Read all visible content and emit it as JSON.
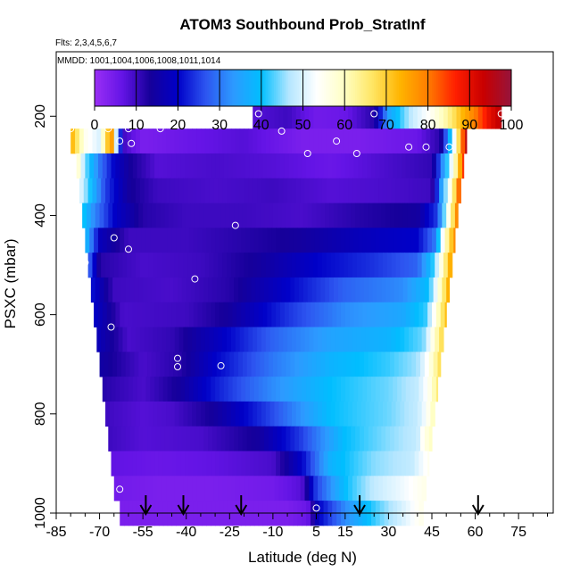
{
  "chart_data": {
    "type": "heatmap",
    "title": "ATOM3 Southbound Prob_StratInf",
    "subtitle_flights": "Flts: 2,3,4,5,6,7",
    "subtitle_dates": "MMDD: 1001,1004,1006,1008,1011,1014",
    "xlabel": "Latitude (deg N)",
    "ylabel": "PSXC (mbar)",
    "xlim": [
      -85,
      87
    ],
    "ylim": [
      1000,
      70
    ],
    "x_ticks": [
      "-85",
      "-70",
      "-55",
      "-40",
      "-25",
      "-10",
      "5",
      "15",
      "30",
      "45",
      "60",
      "75"
    ],
    "x_tick_values": [
      -85,
      -70,
      -55,
      -40,
      -25,
      -10,
      5,
      15,
      30,
      45,
      60,
      75
    ],
    "y_ticks": [
      "200",
      "400",
      "600",
      "800",
      "1000"
    ],
    "y_tick_values": [
      200,
      400,
      600,
      800,
      1000
    ],
    "colorbar": {
      "min": 0,
      "max": 100,
      "tick_labels": [
        "0",
        "10",
        "20",
        "30",
        "40",
        "50",
        "60",
        "70",
        "80",
        "90",
        "100"
      ],
      "tick_values": [
        0,
        10,
        20,
        30,
        40,
        50,
        60,
        70,
        80,
        90,
        100
      ],
      "colors": [
        "#9a2ff5",
        "#6414e6",
        "#16009a",
        "#0000c8",
        "#2d55f0",
        "#2d9aff",
        "#00beff",
        "#b4e6ff",
        "#ffffff",
        "#ffffc3",
        "#ffe664",
        "#ffb400",
        "#ff7d00",
        "#ff1e00",
        "#c80000",
        "#96143c"
      ]
    },
    "flight_arrows_lat": [
      -54,
      -41,
      -21,
      20,
      61
    ],
    "levels": [
      {
        "p": 200,
        "lat_min": -17,
        "lat_max": 69,
        "knots": [
          [
            -17,
            8
          ],
          [
            -5,
            10
          ],
          [
            5,
            5
          ],
          [
            15,
            6
          ],
          [
            25,
            12
          ],
          [
            30,
            35
          ],
          [
            38,
            48
          ],
          [
            45,
            55
          ],
          [
            50,
            62
          ],
          [
            55,
            72
          ],
          [
            60,
            80
          ],
          [
            65,
            90
          ],
          [
            69,
            95
          ]
        ]
      },
      {
        "p": 250,
        "lat_min": -80,
        "lat_max": 57,
        "knots": [
          [
            -80,
            75
          ],
          [
            -75,
            55
          ],
          [
            -70,
            50
          ],
          [
            -66,
            80
          ],
          [
            -62,
            10
          ],
          [
            -55,
            4
          ],
          [
            -40,
            6
          ],
          [
            -20,
            8
          ],
          [
            0,
            4
          ],
          [
            20,
            4
          ],
          [
            40,
            6
          ],
          [
            48,
            12
          ],
          [
            52,
            45
          ],
          [
            57,
            95
          ]
        ]
      },
      {
        "p": 300,
        "lat_min": -78,
        "lat_max": 56,
        "knots": [
          [
            -78,
            62
          ],
          [
            -75,
            45
          ],
          [
            -70,
            30
          ],
          [
            -65,
            20
          ],
          [
            -60,
            14
          ],
          [
            -50,
            8
          ],
          [
            -30,
            9
          ],
          [
            -10,
            8
          ],
          [
            10,
            6
          ],
          [
            30,
            9
          ],
          [
            45,
            11
          ],
          [
            50,
            40
          ],
          [
            53,
            60
          ],
          [
            56,
            85
          ]
        ]
      },
      {
        "p": 350,
        "lat_min": -77,
        "lat_max": 55,
        "knots": [
          [
            -77,
            52
          ],
          [
            -73,
            40
          ],
          [
            -68,
            25
          ],
          [
            -60,
            14
          ],
          [
            -50,
            10
          ],
          [
            -30,
            9
          ],
          [
            -10,
            10
          ],
          [
            10,
            8
          ],
          [
            30,
            9
          ],
          [
            45,
            10
          ],
          [
            49,
            40
          ],
          [
            52,
            60
          ],
          [
            55,
            88
          ]
        ]
      },
      {
        "p": 400,
        "lat_min": -76,
        "lat_max": 54,
        "knots": [
          [
            -76,
            42
          ],
          [
            -72,
            32
          ],
          [
            -65,
            20
          ],
          [
            -55,
            12
          ],
          [
            -40,
            10
          ],
          [
            -20,
            10
          ],
          [
            0,
            9
          ],
          [
            20,
            12
          ],
          [
            40,
            14
          ],
          [
            47,
            25
          ],
          [
            50,
            50
          ],
          [
            54,
            80
          ]
        ]
      },
      {
        "p": 450,
        "lat_min": -75,
        "lat_max": 53,
        "knots": [
          [
            -75,
            40
          ],
          [
            -70,
            18
          ],
          [
            -60,
            10
          ],
          [
            -40,
            10
          ],
          [
            -20,
            12
          ],
          [
            0,
            14
          ],
          [
            20,
            18
          ],
          [
            40,
            20
          ],
          [
            46,
            30
          ],
          [
            49,
            55
          ],
          [
            53,
            78
          ]
        ]
      },
      {
        "p": 500,
        "lat_min": -74,
        "lat_max": 52,
        "knots": [
          [
            -74,
            30
          ],
          [
            -70,
            12
          ],
          [
            -55,
            9
          ],
          [
            -35,
            10
          ],
          [
            -15,
            14
          ],
          [
            5,
            20
          ],
          [
            25,
            24
          ],
          [
            40,
            28
          ],
          [
            45,
            40
          ],
          [
            48,
            55
          ],
          [
            52,
            78
          ]
        ]
      },
      {
        "p": 550,
        "lat_min": -73,
        "lat_max": 51,
        "knots": [
          [
            -73,
            22
          ],
          [
            -65,
            10
          ],
          [
            -45,
            9
          ],
          [
            -25,
            12
          ],
          [
            -5,
            20
          ],
          [
            15,
            28
          ],
          [
            35,
            32
          ],
          [
            44,
            40
          ],
          [
            47,
            55
          ],
          [
            51,
            75
          ]
        ]
      },
      {
        "p": 600,
        "lat_min": -72,
        "lat_max": 50,
        "knots": [
          [
            -72,
            20
          ],
          [
            -62,
            9
          ],
          [
            -40,
            10
          ],
          [
            -25,
            14
          ],
          [
            -5,
            24
          ],
          [
            15,
            32
          ],
          [
            35,
            36
          ],
          [
            43,
            42
          ],
          [
            46,
            55
          ],
          [
            50,
            72
          ]
        ]
      },
      {
        "p": 650,
        "lat_min": -71,
        "lat_max": 49,
        "knots": [
          [
            -71,
            18
          ],
          [
            -60,
            9
          ],
          [
            -45,
            11
          ],
          [
            -30,
            18
          ],
          [
            -10,
            28
          ],
          [
            10,
            35
          ],
          [
            30,
            38
          ],
          [
            42,
            44
          ],
          [
            45,
            55
          ],
          [
            49,
            70
          ]
        ]
      },
      {
        "p": 700,
        "lat_min": -70,
        "lat_max": 48,
        "knots": [
          [
            -70,
            15
          ],
          [
            -55,
            9
          ],
          [
            -42,
            12
          ],
          [
            -30,
            20
          ],
          [
            -10,
            30
          ],
          [
            10,
            38
          ],
          [
            30,
            42
          ],
          [
            40,
            46
          ],
          [
            44,
            55
          ],
          [
            48,
            68
          ]
        ]
      },
      {
        "p": 750,
        "lat_min": -69,
        "lat_max": 47,
        "knots": [
          [
            -69,
            12
          ],
          [
            -55,
            9
          ],
          [
            -42,
            14
          ],
          [
            -30,
            22
          ],
          [
            -10,
            32
          ],
          [
            10,
            40
          ],
          [
            30,
            44
          ],
          [
            40,
            48
          ],
          [
            44,
            55
          ],
          [
            47,
            65
          ]
        ]
      },
      {
        "p": 800,
        "lat_min": -68,
        "lat_max": 46,
        "knots": [
          [
            -68,
            10
          ],
          [
            -55,
            8
          ],
          [
            -45,
            9
          ],
          [
            -30,
            14
          ],
          [
            -10,
            26
          ],
          [
            10,
            40
          ],
          [
            30,
            44
          ],
          [
            40,
            48
          ],
          [
            43,
            53
          ],
          [
            46,
            62
          ]
        ]
      },
      {
        "p": 850,
        "lat_min": -67,
        "lat_max": 45,
        "knots": [
          [
            -67,
            10
          ],
          [
            -55,
            8
          ],
          [
            -35,
            9
          ],
          [
            -15,
            14
          ],
          [
            0,
            25
          ],
          [
            15,
            40
          ],
          [
            30,
            45
          ],
          [
            40,
            48
          ],
          [
            42,
            55
          ],
          [
            45,
            60
          ]
        ]
      },
      {
        "p": 900,
        "lat_min": -66,
        "lat_max": 44,
        "knots": [
          [
            -66,
            7
          ],
          [
            -50,
            6
          ],
          [
            -30,
            7
          ],
          [
            -10,
            9
          ],
          [
            0,
            20
          ],
          [
            10,
            38
          ],
          [
            25,
            45
          ],
          [
            38,
            48
          ],
          [
            44,
            55
          ]
        ]
      },
      {
        "p": 950,
        "lat_min": -65,
        "lat_max": 43,
        "knots": [
          [
            -65,
            5
          ],
          [
            -50,
            4
          ],
          [
            -30,
            4
          ],
          [
            -10,
            5
          ],
          [
            0,
            8
          ],
          [
            5,
            25
          ],
          [
            15,
            40
          ],
          [
            25,
            48
          ],
          [
            35,
            52
          ],
          [
            43,
            56
          ]
        ]
      },
      {
        "p": 1000,
        "lat_min": -63,
        "lat_max": 42,
        "knots": [
          [
            -63,
            4
          ],
          [
            -40,
            4
          ],
          [
            -20,
            4
          ],
          [
            -5,
            4
          ],
          [
            2,
            6
          ],
          [
            6,
            20
          ],
          [
            15,
            32
          ],
          [
            25,
            42
          ],
          [
            35,
            50
          ],
          [
            42,
            56
          ]
        ]
      }
    ],
    "sample_points": [
      {
        "lat": -15,
        "p": 195
      },
      {
        "lat": 25,
        "p": 195
      },
      {
        "lat": 69,
        "p": 195
      },
      {
        "lat": -80,
        "p": 225
      },
      {
        "lat": -67,
        "p": 225
      },
      {
        "lat": -60,
        "p": 225
      },
      {
        "lat": -49,
        "p": 225
      },
      {
        "lat": -7,
        "p": 230
      },
      {
        "lat": -63,
        "p": 250
      },
      {
        "lat": -59,
        "p": 255
      },
      {
        "lat": 12,
        "p": 250
      },
      {
        "lat": 2,
        "p": 275
      },
      {
        "lat": 19,
        "p": 275
      },
      {
        "lat": 37,
        "p": 262
      },
      {
        "lat": 43,
        "p": 262
      },
      {
        "lat": 51,
        "p": 262
      },
      {
        "lat": -23,
        "p": 420
      },
      {
        "lat": -65,
        "p": 445
      },
      {
        "lat": -60,
        "p": 468
      },
      {
        "lat": -75,
        "p": 495
      },
      {
        "lat": -37,
        "p": 528
      },
      {
        "lat": -66,
        "p": 625
      },
      {
        "lat": -43,
        "p": 688
      },
      {
        "lat": -43,
        "p": 705
      },
      {
        "lat": -28,
        "p": 703
      },
      {
        "lat": -63,
        "p": 952
      },
      {
        "lat": 5,
        "p": 990
      }
    ]
  }
}
